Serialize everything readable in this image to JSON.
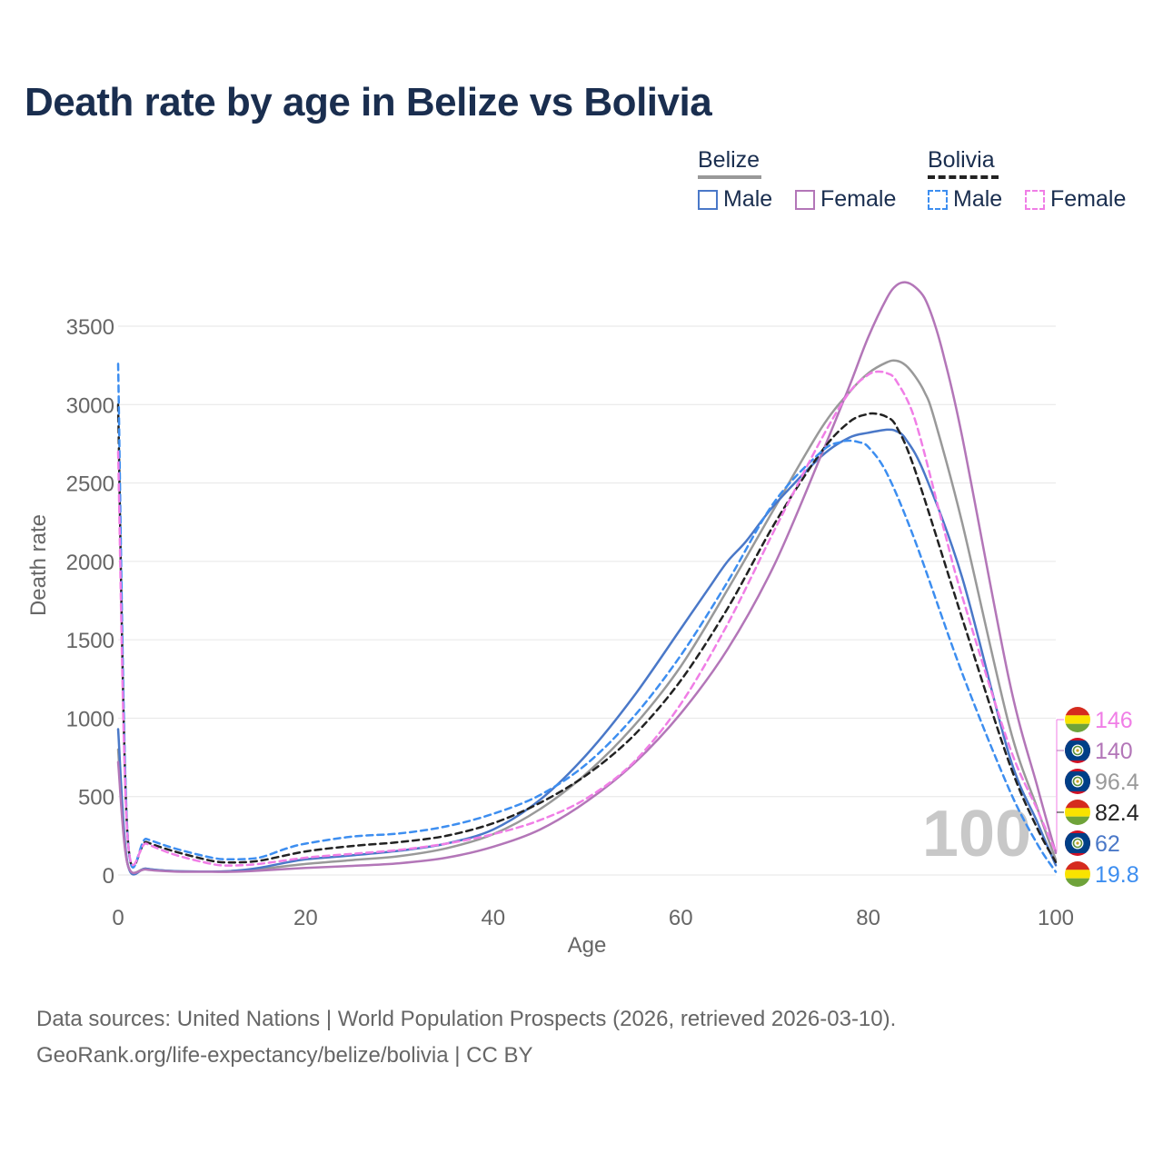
{
  "title": "Death rate by age in Belize vs Bolivia",
  "legend": {
    "groups": [
      {
        "name": "Belize",
        "rule_style": "solid",
        "rule_color": "#999999",
        "items": [
          {
            "label": "Male",
            "color": "#4a78c8",
            "style": "solid"
          },
          {
            "label": "Female",
            "color": "#b376b8",
            "style": "solid"
          }
        ]
      },
      {
        "name": "Bolivia",
        "rule_style": "dashed",
        "rule_color": "#222222",
        "items": [
          {
            "label": "Male",
            "color": "#3d8ef0",
            "style": "dashed"
          },
          {
            "label": "Female",
            "color": "#f07ee6",
            "style": "dashed"
          }
        ]
      }
    ]
  },
  "chart_data": {
    "type": "line",
    "title": "Death rate by age in Belize vs Bolivia",
    "xlabel": "Age",
    "ylabel": "Death rate",
    "xlim": [
      0,
      100
    ],
    "ylim": [
      0,
      3500
    ],
    "xticks": [
      0,
      20,
      40,
      60,
      80,
      100
    ],
    "yticks": [
      0,
      500,
      1000,
      1500,
      2000,
      2500,
      3000,
      3500
    ],
    "watermark": "100",
    "grid": true,
    "series": [
      {
        "name": "Belize Total",
        "color": "#999999",
        "dash": false,
        "x": [
          0,
          1,
          3,
          6,
          10,
          12,
          15,
          20,
          25,
          30,
          35,
          40,
          45,
          50,
          55,
          60,
          65,
          70,
          75,
          78,
          80,
          82,
          83,
          84,
          85,
          86,
          87,
          90,
          95,
          98,
          100
        ],
        "y": [
          800,
          75,
          40,
          25,
          22,
          25,
          38,
          70,
          95,
          120,
          170,
          260,
          420,
          650,
          950,
          1330,
          1820,
          2340,
          2850,
          3080,
          3200,
          3270,
          3280,
          3250,
          3180,
          3080,
          2920,
          2250,
          960,
          430,
          96.4
        ]
      },
      {
        "name": "Belize Male",
        "color": "#4a78c8",
        "dash": false,
        "x": [
          0,
          1,
          3,
          6,
          10,
          12,
          15,
          18,
          20,
          25,
          30,
          35,
          40,
          45,
          50,
          55,
          60,
          63,
          65,
          67,
          70,
          75,
          78,
          80,
          82,
          83,
          84,
          86,
          90,
          95,
          98,
          100
        ],
        "y": [
          930,
          75,
          40,
          25,
          22,
          25,
          45,
          80,
          100,
          125,
          155,
          200,
          290,
          480,
          770,
          1140,
          1570,
          1830,
          2000,
          2130,
          2360,
          2670,
          2790,
          2820,
          2840,
          2830,
          2780,
          2560,
          1900,
          770,
          340,
          62
        ]
      },
      {
        "name": "Belize Female",
        "color": "#b376b8",
        "dash": false,
        "x": [
          0,
          1,
          3,
          6,
          10,
          12,
          15,
          20,
          25,
          30,
          35,
          40,
          45,
          50,
          55,
          60,
          65,
          70,
          75,
          78,
          80,
          82,
          83,
          84,
          85,
          86,
          87,
          88,
          90,
          95,
          98,
          100
        ],
        "y": [
          720,
          70,
          35,
          22,
          20,
          20,
          28,
          45,
          58,
          75,
          110,
          180,
          290,
          470,
          710,
          1030,
          1440,
          1980,
          2680,
          3120,
          3430,
          3680,
          3760,
          3780,
          3750,
          3680,
          3530,
          3320,
          2800,
          1250,
          570,
          140
        ]
      },
      {
        "name": "Bolivia Total",
        "color": "#222222",
        "dash": true,
        "x": [
          0,
          1,
          3,
          6,
          10,
          12,
          15,
          20,
          25,
          30,
          35,
          40,
          45,
          50,
          55,
          60,
          65,
          70,
          75,
          78,
          80,
          81,
          82,
          83,
          85,
          90,
          95,
          98,
          100
        ],
        "y": [
          3000,
          260,
          210,
          150,
          90,
          80,
          90,
          150,
          185,
          210,
          250,
          330,
          460,
          640,
          890,
          1240,
          1700,
          2240,
          2700,
          2890,
          2940,
          2940,
          2920,
          2860,
          2580,
          1640,
          720,
          300,
          82.4
        ]
      },
      {
        "name": "Bolivia Male",
        "color": "#3d8ef0",
        "dash": true,
        "x": [
          0,
          1,
          3,
          6,
          10,
          12,
          15,
          18,
          20,
          25,
          30,
          35,
          40,
          45,
          50,
          55,
          60,
          65,
          70,
          75,
          77,
          78,
          79,
          80,
          82,
          85,
          90,
          95,
          98,
          100
        ],
        "y": [
          3260,
          270,
          230,
          170,
          110,
          100,
          110,
          170,
          200,
          245,
          265,
          310,
          390,
          510,
          710,
          1010,
          1400,
          1870,
          2380,
          2700,
          2760,
          2770,
          2760,
          2730,
          2560,
          2130,
          1290,
          550,
          200,
          19.8
        ]
      },
      {
        "name": "Bolivia Female",
        "color": "#f07ee6",
        "dash": true,
        "x": [
          0,
          1,
          3,
          6,
          10,
          12,
          15,
          20,
          25,
          30,
          35,
          40,
          45,
          50,
          55,
          60,
          65,
          70,
          75,
          78,
          80,
          81,
          82,
          83,
          85,
          88,
          90,
          95,
          98,
          100
        ],
        "y": [
          2700,
          250,
          200,
          130,
          70,
          60,
          70,
          110,
          135,
          160,
          200,
          260,
          350,
          490,
          720,
          1090,
          1600,
          2200,
          2780,
          3080,
          3190,
          3210,
          3200,
          3150,
          2900,
          2220,
          1780,
          830,
          420,
          146
        ]
      }
    ],
    "end_labels": [
      {
        "value": "146",
        "color": "#f07ee6",
        "flag": "bolivia"
      },
      {
        "value": "140",
        "color": "#b376b8",
        "flag": "belize"
      },
      {
        "value": "96.4",
        "color": "#999999",
        "flag": "belize"
      },
      {
        "value": "82.4",
        "color": "#222222",
        "flag": "bolivia"
      },
      {
        "value": "62",
        "color": "#4a78c8",
        "flag": "belize"
      },
      {
        "value": "19.8",
        "color": "#3d8ef0",
        "flag": "bolivia"
      }
    ]
  },
  "footer": {
    "line1": "Data sources: United Nations | World Population Prospects (2026, retrieved 2026-03-10).",
    "line2": "GeoRank.org/life-expectancy/belize/bolivia | CC BY"
  }
}
